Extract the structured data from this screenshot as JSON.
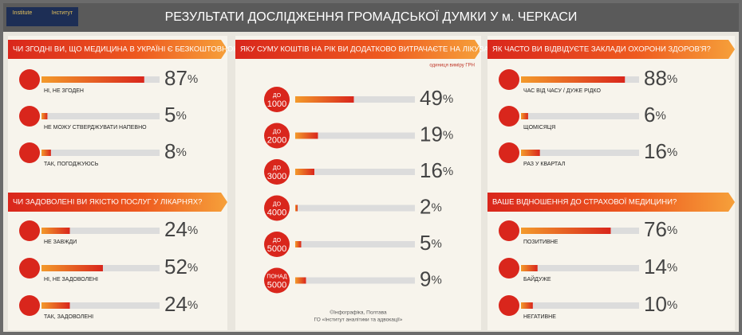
{
  "header": {
    "title": "РЕЗУЛЬТАТИ ДОСЛІДЖЕННЯ ГРОМАДСЬКОЇ ДУМКИ У м. ЧЕРКАСИ",
    "logo_en": "Institute",
    "logo_ua": "Інститут"
  },
  "footer": {
    "line1": "©Інфографіка, Полтава",
    "line2": "ГО «Інститут аналітики та адвокації»"
  },
  "chart_data": [
    {
      "type": "bar",
      "title": "ЧИ ЗГОДНІ ВИ, ЩО МЕДИЦИНА В УКРАЇНІ Є БЕЗКОШТОВНОЮ?",
      "categories": [
        "НІ, НЕ ЗГОДЕН",
        "НЕ МОЖУ СТВЕРДЖУВАТИ НАПЕВНО",
        "ТАК, ПОГОДЖУЮСЬ"
      ],
      "values": [
        87,
        5,
        8
      ],
      "value_labels": [
        "87%",
        "5%",
        "8%"
      ],
      "xlim": [
        0,
        100
      ]
    },
    {
      "type": "bar",
      "title": "ЧИ ЗАДОВОЛЕНІ ВИ ЯКІСТЮ ПОСЛУГ У ЛІКАРНЯХ?",
      "categories": [
        "НЕ ЗАВЖДИ",
        "НІ, НЕ ЗАДОВОЛЕНІ",
        "ТАК, ЗАДОВОЛЕНІ"
      ],
      "values": [
        24,
        52,
        24
      ],
      "value_labels": [
        "24%",
        "52%",
        "24%"
      ],
      "xlim": [
        0,
        100
      ]
    },
    {
      "type": "bar",
      "title": "ЯКУ СУМУ КОШТІВ НА РІК ВИ ДОДАТКОВО ВИТРАЧАЄТЕ НА ЛІКУВАННЯ?",
      "subtitle": "одиниця виміру ГРН",
      "categories": [
        "ДО 1000",
        "ДО 2000",
        "ДО 3000",
        "ДО 4000",
        "ДО 5000",
        "ПОНАД 5000"
      ],
      "values": [
        49,
        19,
        16,
        2,
        5,
        9
      ],
      "value_labels": [
        "49%",
        "19%",
        "16%",
        "2%",
        "5%",
        "9%"
      ],
      "xlim": [
        0,
        100
      ]
    },
    {
      "type": "bar",
      "title": "ЯК ЧАСТО ВИ ВІДВІДУЄТЕ ЗАКЛАДИ ОХОРОНИ ЗДОРОВ'Я?",
      "categories": [
        "ЧАС ВІД ЧАСУ / ДУЖЕ РІДКО",
        "ЩОМІСЯЦЯ",
        "РАЗ У КВАРТАЛ"
      ],
      "values": [
        88,
        6,
        16
      ],
      "value_labels": [
        "88%",
        "6%",
        "16%"
      ],
      "xlim": [
        0,
        100
      ]
    },
    {
      "type": "bar",
      "title": "ВАШЕ ВІДНОШЕННЯ ДО СТРАХОВОЇ МЕДИЦИНИ?",
      "categories": [
        "ПОЗИТИВНЕ",
        "БАЙДУЖЕ",
        "НЕГАТИВНЕ"
      ],
      "values": [
        76,
        14,
        10
      ],
      "value_labels": [
        "76%",
        "14%",
        "10%"
      ],
      "xlim": [
        0,
        100
      ]
    }
  ]
}
